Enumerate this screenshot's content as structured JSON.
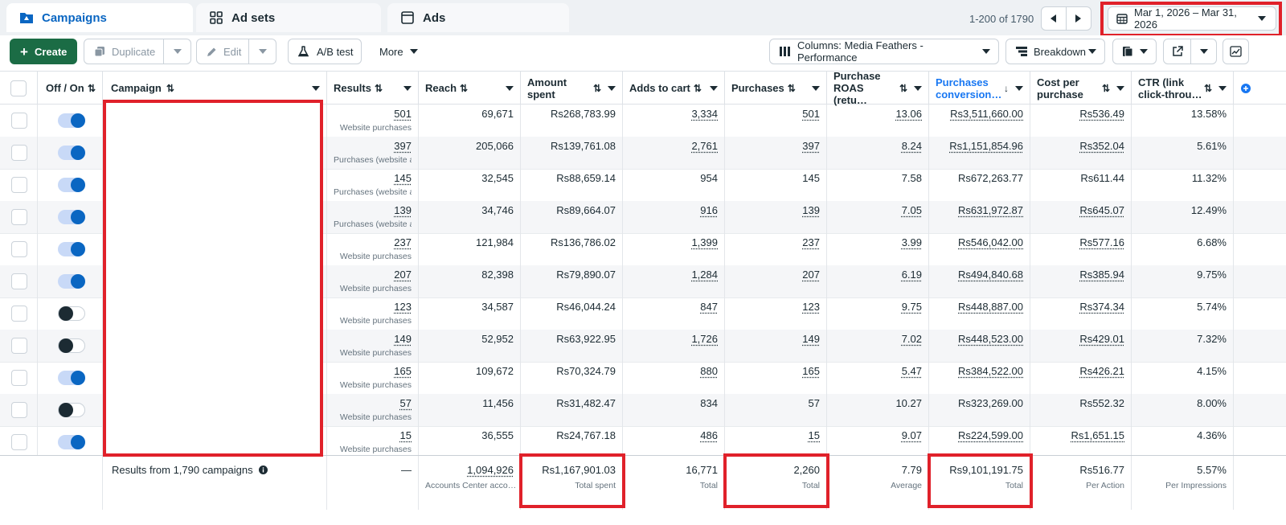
{
  "tabs": [
    {
      "label": "Campaigns",
      "icon": "folder-icon",
      "active": true
    },
    {
      "label": "Ad sets",
      "icon": "grid-icon",
      "active": false
    },
    {
      "label": "Ads",
      "icon": "ad-page-icon",
      "active": false
    }
  ],
  "pagination": {
    "range_text": "1-200 of 1790"
  },
  "date_range": {
    "label": "Mar 1, 2026 – Mar 31, 2026"
  },
  "toolbar": {
    "create_label": "Create",
    "duplicate_label": "Duplicate",
    "edit_label": "Edit",
    "ab_test_label": "A/B test",
    "more_label": "More",
    "columns_label": "Columns: Media Feathers - Performance",
    "breakdown_label": "Breakdown"
  },
  "columns": {
    "toggle": "Off / On",
    "campaign": "Campaign",
    "results": "Results",
    "reach": "Reach",
    "amount_spent": "Amount spent",
    "adds_to_cart": "Adds to cart",
    "purchases": "Purchases",
    "roas": "Purchase ROAS (retu…",
    "conversion_value": "Purchases conversion…",
    "cost_per_purchase": "Cost per purchase",
    "ctr": "CTR (link click-throu…"
  },
  "rows": [
    {
      "on": true,
      "results": "501",
      "results_sub": "Website purchases",
      "reach": "69,671",
      "spent": "Rs268,783.99",
      "atc": "3,334",
      "purchases": "501",
      "roas": "13.06",
      "value": "Rs3,511,660.00",
      "cpp": "Rs536.49",
      "ctr": "13.58%"
    },
    {
      "on": true,
      "results": "397",
      "results_sub": "Purchases (website a…",
      "reach": "205,066",
      "spent": "Rs139,761.08",
      "atc": "2,761",
      "purchases": "397",
      "roas": "8.24",
      "value": "Rs1,151,854.96",
      "cpp": "Rs352.04",
      "ctr": "5.61%"
    },
    {
      "on": true,
      "results": "145",
      "results_sub": "Purchases (website a…",
      "reach": "32,545",
      "spent": "Rs88,659.14",
      "atc": "954",
      "purchases": "145",
      "roas": "7.58",
      "value": "Rs672,263.77",
      "cpp": "Rs611.44",
      "ctr": "11.32%"
    },
    {
      "on": true,
      "results": "139",
      "results_sub": "Purchases (website a…",
      "reach": "34,746",
      "spent": "Rs89,664.07",
      "atc": "916",
      "purchases": "139",
      "roas": "7.05",
      "value": "Rs631,972.87",
      "cpp": "Rs645.07",
      "ctr": "12.49%"
    },
    {
      "on": true,
      "results": "237",
      "results_sub": "Website purchases",
      "reach": "121,984",
      "spent": "Rs136,786.02",
      "atc": "1,399",
      "purchases": "237",
      "roas": "3.99",
      "value": "Rs546,042.00",
      "cpp": "Rs577.16",
      "ctr": "6.68%"
    },
    {
      "on": true,
      "results": "207",
      "results_sub": "Website purchases",
      "reach": "82,398",
      "spent": "Rs79,890.07",
      "atc": "1,284",
      "purchases": "207",
      "roas": "6.19",
      "value": "Rs494,840.68",
      "cpp": "Rs385.94",
      "ctr": "9.75%"
    },
    {
      "on": false,
      "results": "123",
      "results_sub": "Website purchases",
      "reach": "34,587",
      "spent": "Rs46,044.24",
      "atc": "847",
      "purchases": "123",
      "roas": "9.75",
      "value": "Rs448,887.00",
      "cpp": "Rs374.34",
      "ctr": "5.74%"
    },
    {
      "on": false,
      "results": "149",
      "results_sub": "Website purchases",
      "reach": "52,952",
      "spent": "Rs63,922.95",
      "atc": "1,726",
      "purchases": "149",
      "roas": "7.02",
      "value": "Rs448,523.00",
      "cpp": "Rs429.01",
      "ctr": "7.32%"
    },
    {
      "on": true,
      "results": "165",
      "results_sub": "Website purchases",
      "reach": "109,672",
      "spent": "Rs70,324.79",
      "atc": "880",
      "purchases": "165",
      "roas": "5.47",
      "value": "Rs384,522.00",
      "cpp": "Rs426.21",
      "ctr": "4.15%"
    },
    {
      "on": false,
      "results": "57",
      "results_sub": "Website purchases",
      "reach": "11,456",
      "spent": "Rs31,482.47",
      "atc": "834",
      "purchases": "57",
      "roas": "10.27",
      "value": "Rs323,269.00",
      "cpp": "Rs552.32",
      "ctr": "8.00%"
    },
    {
      "on": true,
      "results": "15",
      "results_sub": "Website purchases",
      "reach": "36,555",
      "spent": "Rs24,767.18",
      "atc": "486",
      "purchases": "15",
      "roas": "9.07",
      "value": "Rs224,599.00",
      "cpp": "Rs1,651.15",
      "ctr": "4.36%"
    }
  ],
  "totals": {
    "label": "Results from 1,790 campaigns",
    "results": "—",
    "reach": "1,094,926",
    "reach_sub": "Accounts Center acco…",
    "spent": "Rs1,167,901.03",
    "spent_sub": "Total spent",
    "atc": "16,771",
    "atc_sub": "Total",
    "purchases": "2,260",
    "purchases_sub": "Total",
    "roas": "7.79",
    "roas_sub": "Average",
    "value": "Rs9,101,191.75",
    "value_sub": "Total",
    "cpp": "Rs516.77",
    "cpp_sub": "Per Action",
    "ctr": "5.57%",
    "ctr_sub": "Per Impressions"
  },
  "colors": {
    "accent": "#0a66c2",
    "create": "#1b6c45",
    "highlight": "#e0212a"
  }
}
